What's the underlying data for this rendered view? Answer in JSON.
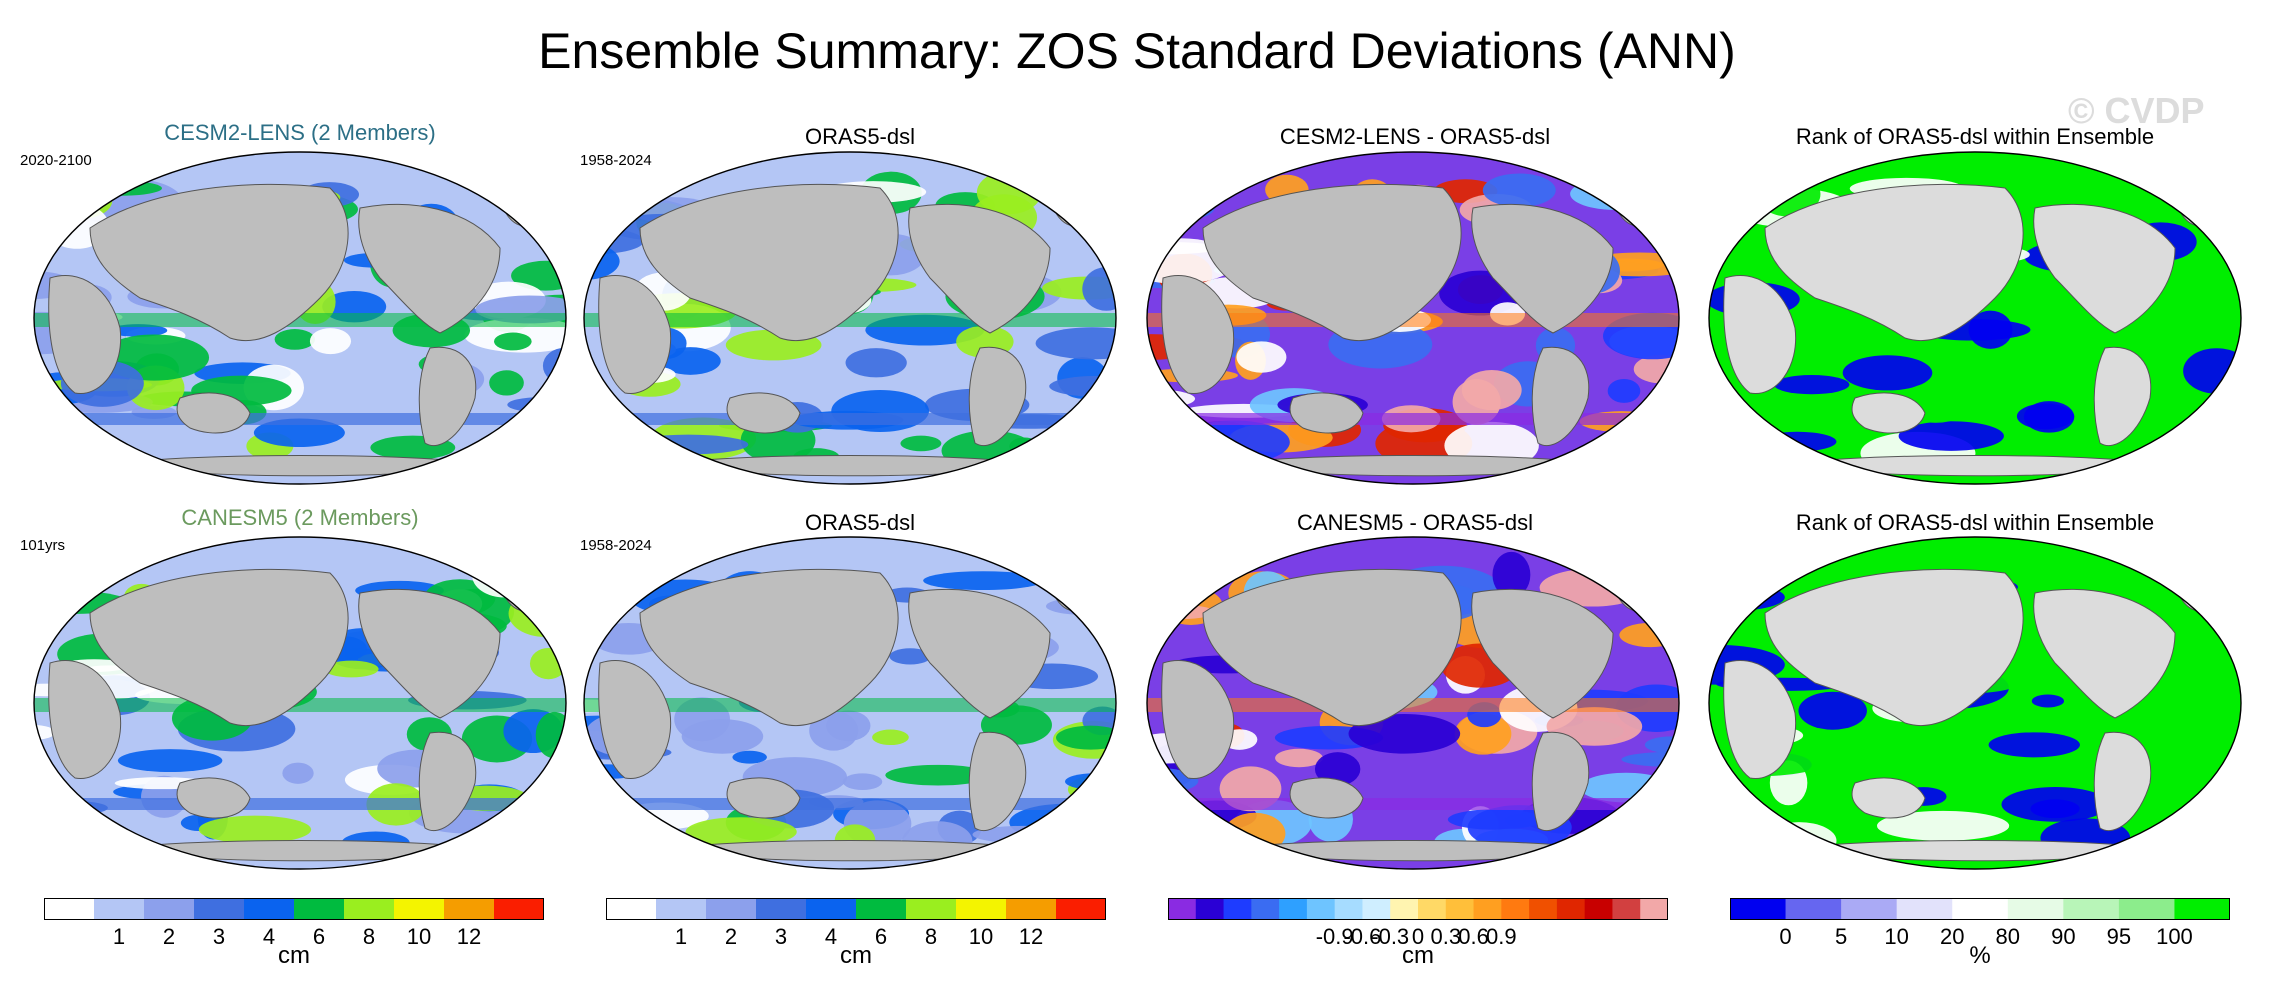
{
  "title": "Ensemble Summary: ZOS Standard Deviations (ANN)",
  "watermark": "© CVDP",
  "panels": [
    {
      "title": "CESM2-LENS (2 Members)",
      "title_color": "#2c6f86",
      "label": "2020-2100",
      "kind": "std"
    },
    {
      "title": "ORAS5-dsl",
      "title_color": "#000000",
      "label": "1958-2024",
      "kind": "std_obs"
    },
    {
      "title": "CESM2-LENS - ORAS5-dsl",
      "title_color": "#000000",
      "label": "",
      "kind": "diff"
    },
    {
      "title": "Rank of ORAS5-dsl within Ensemble",
      "title_color": "#000000",
      "label": "",
      "kind": "rank"
    },
    {
      "title": "CANESM5 (2 Members)",
      "title_color": "#6b9a5e",
      "label": "101yrs",
      "kind": "std"
    },
    {
      "title": "ORAS5-dsl",
      "title_color": "#000000",
      "label": "1958-2024",
      "kind": "std_obs"
    },
    {
      "title": "CANESM5 - ORAS5-dsl",
      "title_color": "#000000",
      "label": "",
      "kind": "diff"
    },
    {
      "title": "Rank of ORAS5-dsl within Ensemble",
      "title_color": "#000000",
      "label": "",
      "kind": "rank"
    }
  ],
  "colorbars": [
    {
      "unit": "cm",
      "ticks": [
        "1",
        "2",
        "3",
        "4",
        "6",
        "8",
        "10",
        "12"
      ],
      "colors": [
        "#ffffff",
        "#b4c6f5",
        "#8ca0ec",
        "#3f6fe0",
        "#0a63ef",
        "#00bb3f",
        "#9aee1f",
        "#f4f400",
        "#f59d00",
        "#fa1e00"
      ]
    },
    {
      "unit": "cm",
      "ticks": [
        "1",
        "2",
        "3",
        "4",
        "6",
        "8",
        "10",
        "12"
      ],
      "colors": [
        "#ffffff",
        "#b4c6f5",
        "#8ca0ec",
        "#3f6fe0",
        "#0a63ef",
        "#00bb3f",
        "#9aee1f",
        "#f4f400",
        "#f59d00",
        "#fa1e00"
      ]
    },
    {
      "unit": "cm",
      "ticks": [
        "-0.9",
        "-0.6",
        "-0.3",
        "0",
        "0.3",
        "0.6",
        "0.9"
      ],
      "colors": [
        "#8a2be2",
        "#2a00d5",
        "#1e3cff",
        "#3a6cf2",
        "#2ea0ff",
        "#6ec4ff",
        "#a6dcff",
        "#cfeeff",
        "#fff4b0",
        "#ffd966",
        "#ffbf3a",
        "#ff9f20",
        "#ff7a10",
        "#f05000",
        "#e02600",
        "#c80000",
        "#d24040",
        "#f2a8a8"
      ]
    },
    {
      "unit": "%",
      "ticks": [
        "0",
        "5",
        "10",
        "20",
        "80",
        "90",
        "95",
        "100"
      ],
      "colors": [
        "#0000f0",
        "#6666f0",
        "#aaaaf5",
        "#e2e2fb",
        "#ffffff",
        "#e6fbe6",
        "#b8f5b8",
        "#8ced8c",
        "#00ee00"
      ]
    }
  ]
}
